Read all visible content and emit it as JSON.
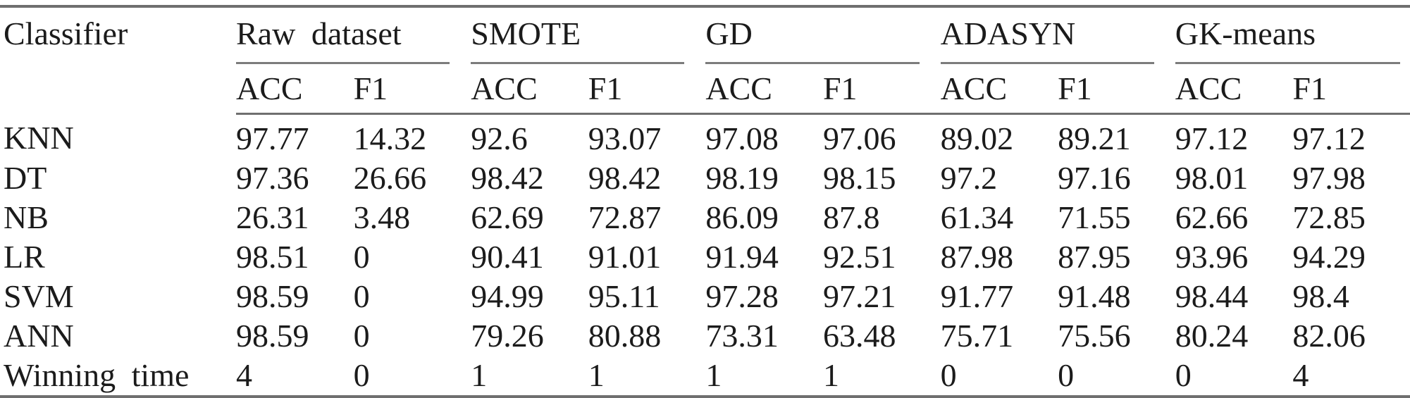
{
  "table": {
    "classifier_header": "Classifier",
    "groups": [
      {
        "label": "Raw dataset"
      },
      {
        "label": "SMOTE"
      },
      {
        "label": "GD"
      },
      {
        "label": "ADASYN"
      },
      {
        "label": "GK-means"
      }
    ],
    "subheaders": [
      "ACC",
      "F1"
    ],
    "rows": [
      {
        "classifier": "KNN",
        "values": [
          "97.77",
          "14.32",
          "92.6",
          "93.07",
          "97.08",
          "97.06",
          "89.02",
          "89.21",
          "97.12",
          "97.12"
        ]
      },
      {
        "classifier": "DT",
        "values": [
          "97.36",
          "26.66",
          "98.42",
          "98.42",
          "98.19",
          "98.15",
          "97.2",
          "97.16",
          "98.01",
          "97.98"
        ]
      },
      {
        "classifier": "NB",
        "values": [
          "26.31",
          "3.48",
          "62.69",
          "72.87",
          "86.09",
          "87.8",
          "61.34",
          "71.55",
          "62.66",
          "72.85"
        ]
      },
      {
        "classifier": "LR",
        "values": [
          "98.51",
          "0",
          "90.41",
          "91.01",
          "91.94",
          "92.51",
          "87.98",
          "87.95",
          "93.96",
          "94.29"
        ]
      },
      {
        "classifier": "SVM",
        "values": [
          "98.59",
          "0",
          "94.99",
          "95.11",
          "97.28",
          "97.21",
          "91.77",
          "91.48",
          "98.44",
          "98.4"
        ]
      },
      {
        "classifier": "ANN",
        "values": [
          "98.59",
          "0",
          "79.26",
          "80.88",
          "73.31",
          "63.48",
          "75.71",
          "75.56",
          "80.24",
          "82.06"
        ]
      },
      {
        "classifier": "Winning time",
        "values": [
          "4",
          "0",
          "1",
          "1",
          "1",
          "1",
          "0",
          "0",
          "0",
          "4"
        ]
      }
    ],
    "rule_color": "#6f6f6f"
  }
}
